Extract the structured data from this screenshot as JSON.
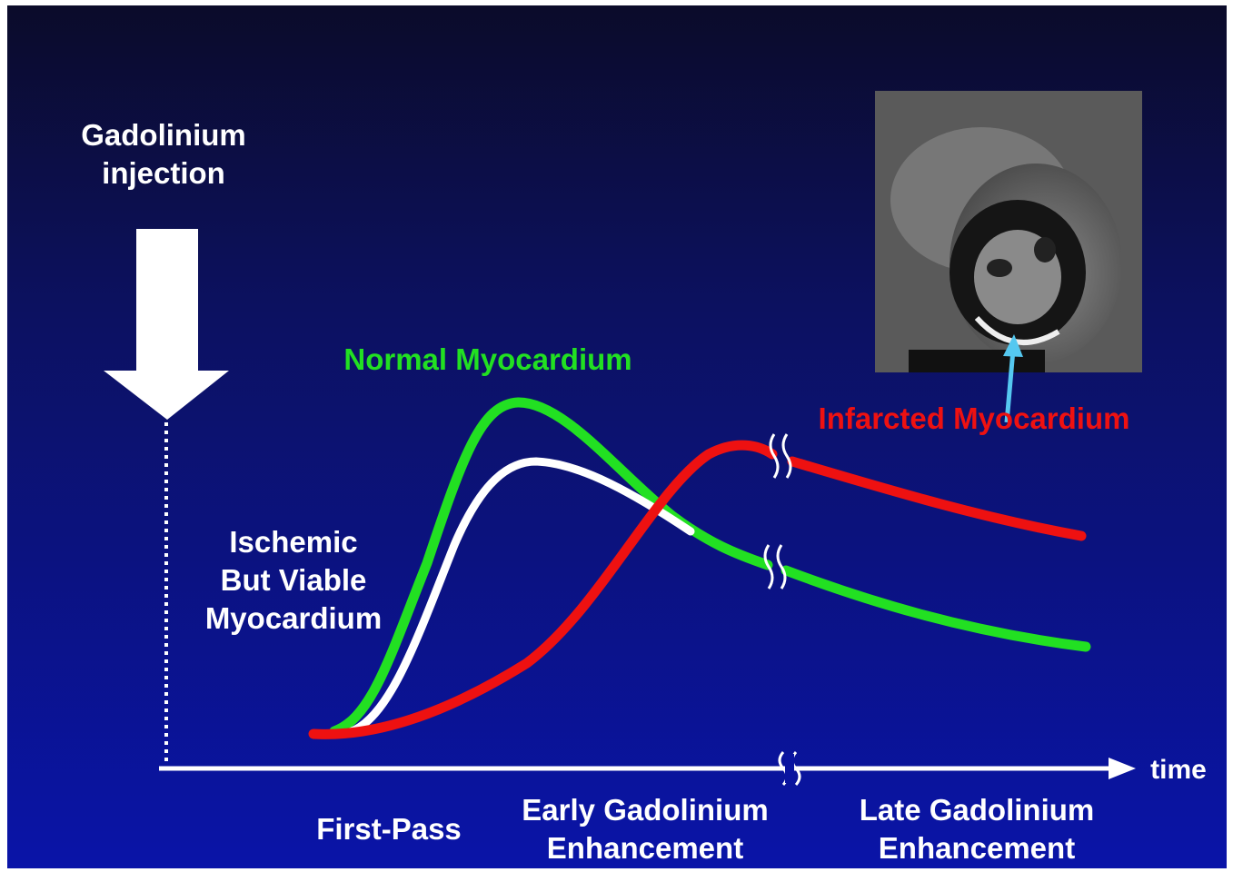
{
  "injection_label": [
    "Gadolinium",
    "injection"
  ],
  "normal_label": "Normal Myocardium",
  "infarcted_label": "Infarcted Myocardium",
  "ischemic_label": [
    "Ischemic",
    "But Viable",
    "Myocardium"
  ],
  "axis_label": "time",
  "phases": [
    [
      "First-Pass"
    ],
    [
      "Early Gadolinium",
      "Enhancement"
    ],
    [
      "Late Gadolinium",
      "Enhancement"
    ]
  ]
}
